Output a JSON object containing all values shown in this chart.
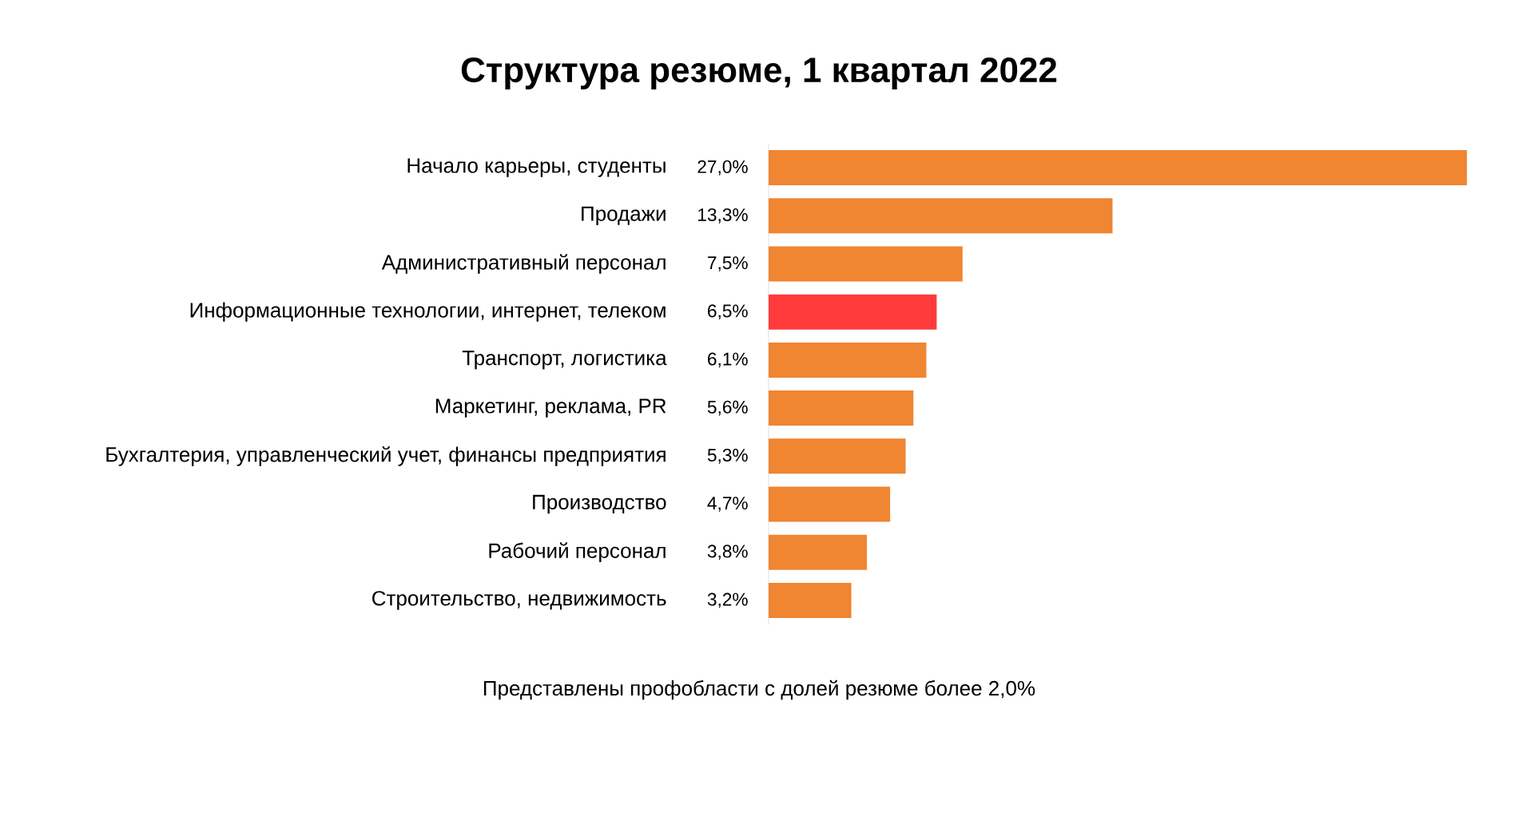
{
  "chart_data": {
    "type": "bar",
    "orientation": "horizontal",
    "title": "Структура резюме, 1 квартал 2022",
    "categories": [
      "Начало карьеры, студенты",
      "Продажи",
      "Административный персонал",
      "Информационные технологии, интернет, телеком",
      "Транспорт, логистика",
      "Маркетинг, реклама, PR",
      "Бухгалтерия, управленческий учет, финансы предприятия",
      "Производство",
      "Рабочий персонал",
      "Строительство, недвижимость"
    ],
    "values": [
      27.0,
      13.3,
      7.5,
      6.5,
      6.1,
      5.6,
      5.3,
      4.7,
      3.8,
      3.2
    ],
    "value_labels": [
      "27,0%",
      "13,3%",
      "7,5%",
      "6,5%",
      "6,1%",
      "5,6%",
      "5,3%",
      "4,7%",
      "3,8%",
      "3,2%"
    ],
    "colors": [
      "#f08532",
      "#f08532",
      "#f08532",
      "#ff3b3b",
      "#f08532",
      "#f08532",
      "#f08532",
      "#f08532",
      "#f08532",
      "#f08532"
    ],
    "annotations": [
      "Представлены профобласти с долей резюме более 2,0%"
    ]
  }
}
